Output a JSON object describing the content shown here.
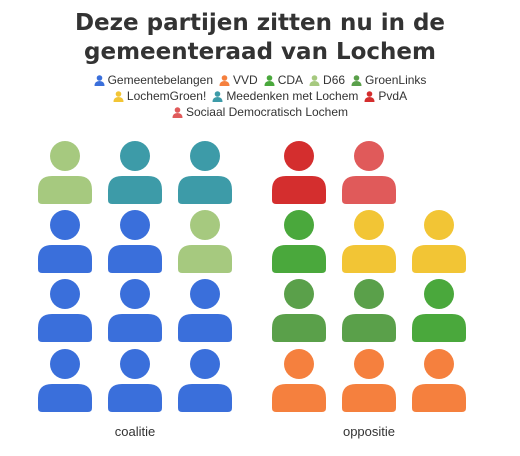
{
  "title": "Deze partijen zitten nu in de gemeenteraad van Lochem",
  "chart_data": {
    "type": "waffle",
    "title": "Deze partijen zitten nu in de gemeenteraad van Lochem",
    "legend_position": "top",
    "parties": [
      {
        "name": "Gemeentebelangen",
        "color": "#3a6fdb"
      },
      {
        "name": "VVD",
        "color": "#f5803e"
      },
      {
        "name": "CDA",
        "color": "#4aa83c"
      },
      {
        "name": "D66",
        "color": "#a6c97f"
      },
      {
        "name": "GroenLinks",
        "color": "#5aa04a"
      },
      {
        "name": "LochemGroen!",
        "color": "#f2c535"
      },
      {
        "name": "Meedenken met Lochem",
        "color": "#3d9ba8"
      },
      {
        "name": "PvdA",
        "color": "#d42e2e"
      },
      {
        "name": "Sociaal Democratisch Lochem",
        "color": "#e05a5a"
      }
    ],
    "groups": [
      {
        "label": "coalitie",
        "columns": [
          [
            "Gemeentebelangen",
            "Gemeentebelangen",
            "Gemeentebelangen",
            "D66"
          ],
          [
            "Gemeentebelangen",
            "Gemeentebelangen",
            "Gemeentebelangen",
            "Meedenken met Lochem"
          ],
          [
            "Gemeentebelangen",
            "Gemeentebelangen",
            "D66",
            "Meedenken met Lochem"
          ]
        ]
      },
      {
        "label": "oppositie",
        "columns": [
          [
            "VVD",
            "GroenLinks",
            "CDA",
            "PvdA"
          ],
          [
            "VVD",
            "GroenLinks",
            "LochemGroen!",
            "Sociaal Democratisch Lochem"
          ],
          [
            "VVD",
            "CDA",
            "LochemGroen!"
          ]
        ]
      }
    ],
    "seats": [
      {
        "party": "Gemeentebelangen",
        "count": 8,
        "group": "coalitie"
      },
      {
        "party": "D66",
        "count": 2,
        "group": "coalitie"
      },
      {
        "party": "Meedenken met Lochem",
        "count": 2,
        "group": "coalitie"
      },
      {
        "party": "VVD",
        "count": 3,
        "group": "oppositie"
      },
      {
        "party": "CDA",
        "count": 2,
        "group": "oppositie"
      },
      {
        "party": "GroenLinks",
        "count": 2,
        "group": "oppositie"
      },
      {
        "party": "LochemGroen!",
        "count": 2,
        "group": "oppositie"
      },
      {
        "party": "PvdA",
        "count": 1,
        "group": "oppositie"
      },
      {
        "party": "Sociaal Democratisch Lochem",
        "count": 1,
        "group": "oppositie"
      }
    ]
  }
}
